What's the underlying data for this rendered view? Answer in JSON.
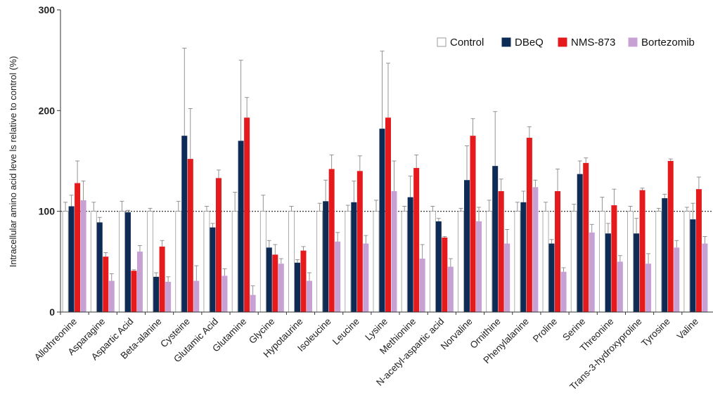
{
  "chart_data": {
    "type": "bar",
    "title": "",
    "xlabel": "",
    "ylabel": "Intracellular amino acid leve ls relative to control (%)",
    "ylim": [
      0,
      300
    ],
    "yticks": [
      "0",
      "100",
      "200",
      "300"
    ],
    "reference_line": 100,
    "grid": false,
    "legend_position": "top-right",
    "categories": [
      "Allothreonine",
      "Asparagine",
      "Aspartic Acid",
      "Beta-alanine",
      "Cysteine",
      "Glutamic Acid",
      "Glutamine",
      "Glycine",
      "Hypotaurine",
      "Isoleucine",
      "Leucine",
      "Lysine",
      "Methionine",
      "N-acetyl-aspartic acid",
      "Norvaline",
      "Ornithine",
      "Phenylalanine",
      "Proline",
      "Serine",
      "Threonine",
      "Trans-3-hydroxyproline",
      "Tyrosine",
      "Valine"
    ],
    "series": [
      {
        "name": "Control",
        "color": "#ffffff",
        "stroke": "#999999",
        "values": [
          100,
          100,
          100,
          100,
          100,
          100,
          100,
          100,
          100,
          100,
          100,
          100,
          100,
          100,
          100,
          100,
          100,
          100,
          100,
          100,
          100,
          100,
          100
        ],
        "errors": [
          9,
          9,
          10,
          3,
          10,
          5,
          19,
          16,
          5,
          8,
          6,
          11,
          5,
          5,
          3,
          11,
          9,
          9,
          7,
          14,
          5,
          3,
          4
        ]
      },
      {
        "name": "DBeQ",
        "color": "#0d2b55",
        "values": [
          105,
          89,
          99,
          35,
          175,
          84,
          170,
          64,
          49,
          110,
          109,
          182,
          114,
          90,
          131,
          145,
          109,
          68,
          137,
          78,
          78,
          113,
          92
        ],
        "errors": [
          11,
          5,
          2,
          4,
          87,
          4,
          80,
          7,
          3,
          21,
          21,
          77,
          21,
          3,
          34,
          54,
          11,
          4,
          13,
          10,
          15,
          4,
          16
        ]
      },
      {
        "name": "NMS-873",
        "color": "#e41a1c",
        "values": [
          128,
          55,
          41,
          65,
          152,
          133,
          193,
          57,
          61,
          142,
          140,
          193,
          143,
          74,
          175,
          120,
          173,
          120,
          148,
          106,
          121,
          150,
          122
        ],
        "errors": [
          22,
          4,
          1,
          6,
          50,
          8,
          20,
          10,
          4,
          14,
          15,
          54,
          13,
          1,
          17,
          12,
          11,
          22,
          5,
          16,
          2,
          2,
          12
        ]
      },
      {
        "name": "Bortezomib",
        "color": "#c7a0d4",
        "values": [
          111,
          31,
          60,
          30,
          31,
          36,
          17,
          48,
          31,
          70,
          68,
          120,
          53,
          45,
          90,
          68,
          124,
          40,
          79,
          50,
          48,
          64,
          68
        ],
        "errors": [
          19,
          7,
          6,
          5,
          15,
          7,
          9,
          5,
          8,
          9,
          8,
          30,
          14,
          8,
          14,
          14,
          7,
          4,
          8,
          6,
          10,
          7,
          7
        ]
      }
    ]
  }
}
